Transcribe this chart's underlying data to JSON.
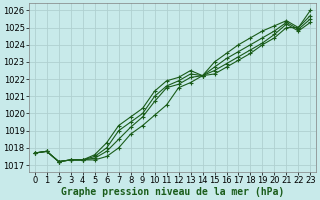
{
  "bg_color": "#c8eaea",
  "grid_color": "#b0d0d0",
  "line_color": "#1a5c1a",
  "marker_color": "#1a5c1a",
  "xlabel": "Graphe pression niveau de la mer (hPa)",
  "xlabel_fontsize": 7,
  "tick_fontsize": 6,
  "ylim": [
    1016.6,
    1026.4
  ],
  "xlim": [
    -0.5,
    23.5
  ],
  "yticks": [
    1017,
    1018,
    1019,
    1020,
    1021,
    1022,
    1023,
    1024,
    1025,
    1026
  ],
  "xticks": [
    0,
    1,
    2,
    3,
    4,
    5,
    6,
    7,
    8,
    9,
    10,
    11,
    12,
    13,
    14,
    15,
    16,
    17,
    18,
    19,
    20,
    21,
    22,
    23
  ],
  "series": [
    [
      1017.7,
      1017.8,
      1017.2,
      1017.3,
      1017.3,
      1017.3,
      1017.5,
      1018.0,
      1018.8,
      1019.3,
      1019.9,
      1020.5,
      1021.5,
      1021.8,
      1022.2,
      1022.3,
      1022.7,
      1023.1,
      1023.5,
      1024.0,
      1024.4,
      1025.0,
      1025.0,
      1025.7
    ],
    [
      1017.7,
      1017.8,
      1017.2,
      1017.3,
      1017.3,
      1017.4,
      1017.8,
      1018.5,
      1019.2,
      1019.8,
      1020.7,
      1021.5,
      1021.7,
      1022.1,
      1022.2,
      1022.5,
      1022.9,
      1023.3,
      1023.7,
      1024.1,
      1024.6,
      1025.2,
      1024.8,
      1025.3
    ],
    [
      1017.7,
      1017.8,
      1017.2,
      1017.3,
      1017.3,
      1017.5,
      1018.0,
      1019.0,
      1019.5,
      1020.0,
      1021.0,
      1021.6,
      1021.9,
      1022.3,
      1022.2,
      1022.7,
      1023.2,
      1023.6,
      1024.0,
      1024.4,
      1024.8,
      1025.3,
      1024.9,
      1025.5
    ],
    [
      1017.7,
      1017.8,
      1017.2,
      1017.3,
      1017.3,
      1017.6,
      1018.3,
      1019.3,
      1019.8,
      1020.3,
      1021.3,
      1021.9,
      1022.1,
      1022.5,
      1022.2,
      1023.0,
      1023.5,
      1024.0,
      1024.4,
      1024.8,
      1025.1,
      1025.4,
      1025.0,
      1026.0
    ]
  ]
}
